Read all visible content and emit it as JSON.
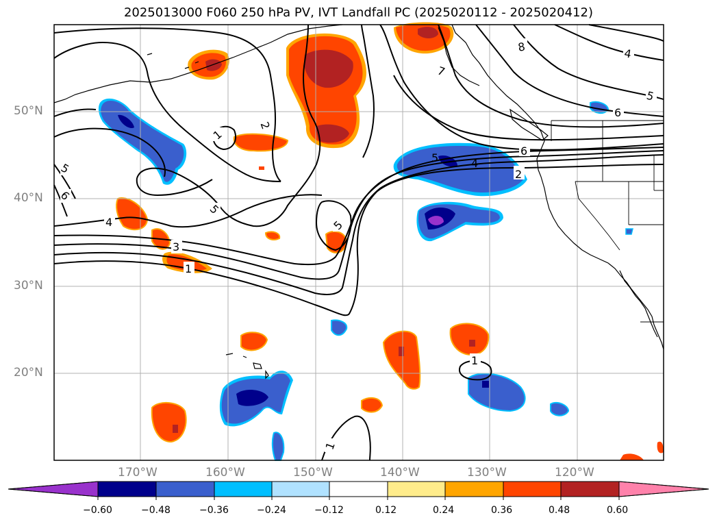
{
  "title": "2025013000 F060 250 hPa PV, IVT Landfall PC (2025020112 - 2025020412)",
  "map": {
    "lat_labels": [
      "50°N",
      "40°N",
      "30°N",
      "20°N"
    ],
    "lon_labels": [
      "170°W",
      "160°W",
      "150°W",
      "140°W",
      "130°W",
      "120°W"
    ],
    "contour_labels": [
      "8",
      "7",
      "4",
      "5",
      "6",
      "6",
      "5",
      "4",
      "2",
      "2",
      "1",
      "5",
      "6",
      "4",
      "3",
      "1",
      "5",
      "5",
      "1",
      "1"
    ],
    "colors": {
      "contour": "#000000",
      "grid": "#b0b0b0",
      "coast": "#000000"
    }
  },
  "colorbar": {
    "ticks": [
      "−0.60",
      "−0.48",
      "−0.36",
      "−0.24",
      "−0.12",
      "0.12",
      "0.24",
      "0.36",
      "0.48",
      "0.60"
    ],
    "colors": [
      "#9932cc",
      "#00008b",
      "#3a5fcd",
      "#00bfff",
      "#b0e2ff",
      "#ffffff",
      "#ffec8b",
      "#ffa500",
      "#ff4500",
      "#b22222",
      "#ff82ab"
    ]
  }
}
